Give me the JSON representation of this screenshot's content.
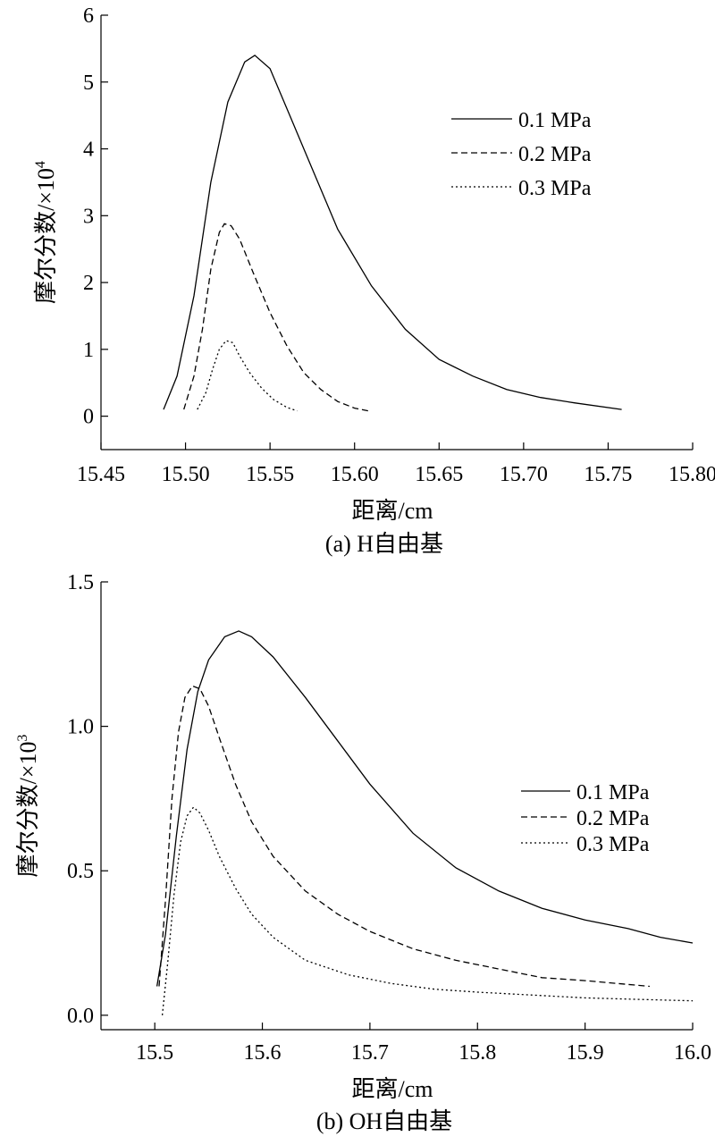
{
  "chart_data": [
    {
      "type": "line",
      "caption": "(a) H自由基",
      "xlabel": "距离/cm",
      "ylabel": "摩尔分数/×10",
      "ylabel_exponent": "4",
      "xlim": [
        15.45,
        15.8
      ],
      "ylim": [
        -0.5,
        6
      ],
      "xticks": [
        15.45,
        15.5,
        15.55,
        15.6,
        15.65,
        15.7,
        15.75,
        15.8
      ],
      "xtick_labels": [
        "15.45",
        "15.50",
        "15.55",
        "15.60",
        "15.65",
        "15.70",
        "15.75",
        "15.80"
      ],
      "yticks": [
        0,
        1,
        2,
        3,
        4,
        5,
        6
      ],
      "ytick_labels": [
        "0",
        "1",
        "2",
        "3",
        "4",
        "5",
        "6"
      ],
      "legend_position": "top-right",
      "grid": false,
      "series": [
        {
          "name": "0.1 MPa",
          "dash": "solid",
          "x": [
            15.487,
            15.495,
            15.505,
            15.515,
            15.525,
            15.535,
            15.541,
            15.55,
            15.56,
            15.575,
            15.59,
            15.61,
            15.63,
            15.65,
            15.67,
            15.69,
            15.71,
            15.73,
            15.758
          ],
          "y": [
            0.1,
            0.6,
            1.8,
            3.5,
            4.7,
            5.3,
            5.4,
            5.2,
            4.6,
            3.7,
            2.8,
            1.95,
            1.3,
            0.85,
            0.6,
            0.4,
            0.28,
            0.2,
            0.1
          ]
        },
        {
          "name": "0.2 MPa",
          "dash": "dashed",
          "x": [
            15.499,
            15.505,
            15.51,
            15.515,
            15.52,
            15.523,
            15.527,
            15.532,
            15.54,
            15.55,
            15.56,
            15.57,
            15.58,
            15.59,
            15.6,
            15.608
          ],
          "y": [
            0.1,
            0.6,
            1.3,
            2.2,
            2.75,
            2.88,
            2.85,
            2.65,
            2.15,
            1.55,
            1.05,
            0.65,
            0.4,
            0.22,
            0.12,
            0.08
          ]
        },
        {
          "name": "0.3 MPa",
          "dash": "dotted",
          "x": [
            15.507,
            15.512,
            15.516,
            15.52,
            15.524,
            15.528,
            15.532,
            15.538,
            15.545,
            15.552,
            15.56,
            15.566
          ],
          "y": [
            0.1,
            0.35,
            0.7,
            1.0,
            1.13,
            1.1,
            0.9,
            0.65,
            0.42,
            0.25,
            0.13,
            0.08
          ]
        }
      ]
    },
    {
      "type": "line",
      "caption": "(b) OH自由基",
      "xlabel": "距离/cm",
      "ylabel": "摩尔分数/×10",
      "ylabel_exponent": "3",
      "xlim": [
        15.45,
        16.0
      ],
      "ylim": [
        -0.05,
        1.5
      ],
      "xticks": [
        15.5,
        15.6,
        15.7,
        15.8,
        15.9,
        16.0
      ],
      "xtick_labels": [
        "15.5",
        "15.6",
        "15.7",
        "15.8",
        "15.9",
        "16.0"
      ],
      "yticks": [
        0,
        0.5,
        1.0,
        1.5
      ],
      "ytick_labels": [
        "0.0",
        "0.5",
        "1.0",
        "1.5"
      ],
      "legend_position": "right",
      "grid": false,
      "series": [
        {
          "name": "0.1 MPa",
          "dash": "solid",
          "x": [
            15.502,
            15.51,
            15.52,
            15.53,
            15.54,
            15.55,
            15.565,
            15.578,
            15.59,
            15.61,
            15.64,
            15.67,
            15.7,
            15.74,
            15.78,
            15.82,
            15.86,
            15.9,
            15.94,
            15.97,
            16.0
          ],
          "y": [
            0.1,
            0.28,
            0.62,
            0.92,
            1.12,
            1.23,
            1.31,
            1.33,
            1.31,
            1.24,
            1.1,
            0.95,
            0.8,
            0.63,
            0.51,
            0.43,
            0.37,
            0.33,
            0.3,
            0.27,
            0.25
          ]
        },
        {
          "name": "0.2 MPa",
          "dash": "dashed",
          "x": [
            15.504,
            15.51,
            15.516,
            15.522,
            15.528,
            15.535,
            15.542,
            15.55,
            15.56,
            15.575,
            15.59,
            15.61,
            15.64,
            15.67,
            15.7,
            15.74,
            15.78,
            15.82,
            15.86,
            15.9,
            15.93,
            15.96
          ],
          "y": [
            0.1,
            0.4,
            0.75,
            0.98,
            1.1,
            1.14,
            1.13,
            1.07,
            0.96,
            0.8,
            0.67,
            0.55,
            0.43,
            0.35,
            0.29,
            0.23,
            0.19,
            0.16,
            0.13,
            0.12,
            0.11,
            0.1
          ]
        },
        {
          "name": "0.3 MPa",
          "dash": "dotted",
          "x": [
            15.507,
            15.512,
            15.518,
            15.524,
            15.53,
            15.536,
            15.542,
            15.55,
            15.56,
            15.575,
            15.59,
            15.61,
            15.64,
            15.68,
            15.72,
            15.76,
            15.8,
            15.85,
            15.9,
            15.95,
            16.0
          ],
          "y": [
            0.0,
            0.18,
            0.42,
            0.6,
            0.69,
            0.72,
            0.7,
            0.64,
            0.55,
            0.44,
            0.35,
            0.27,
            0.19,
            0.14,
            0.11,
            0.09,
            0.08,
            0.07,
            0.06,
            0.055,
            0.05
          ]
        }
      ]
    }
  ]
}
